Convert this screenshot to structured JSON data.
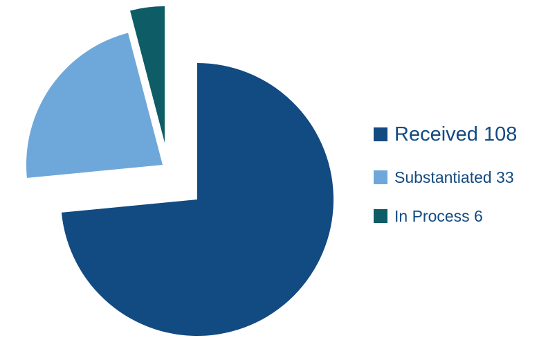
{
  "chart_data": {
    "type": "pie",
    "title": "",
    "exploded": true,
    "legend_placement": "right",
    "slices": [
      {
        "label": "Received",
        "value": 108,
        "legend_text": "Received 108",
        "color": "#124a82"
      },
      {
        "label": "Substantiated",
        "value": 33,
        "legend_text": "Substantiated 33",
        "color": "#6ea8da"
      },
      {
        "label": "In Process",
        "value": 6,
        "legend_text": "In Process 6",
        "color": "#0e5c66"
      }
    ]
  }
}
